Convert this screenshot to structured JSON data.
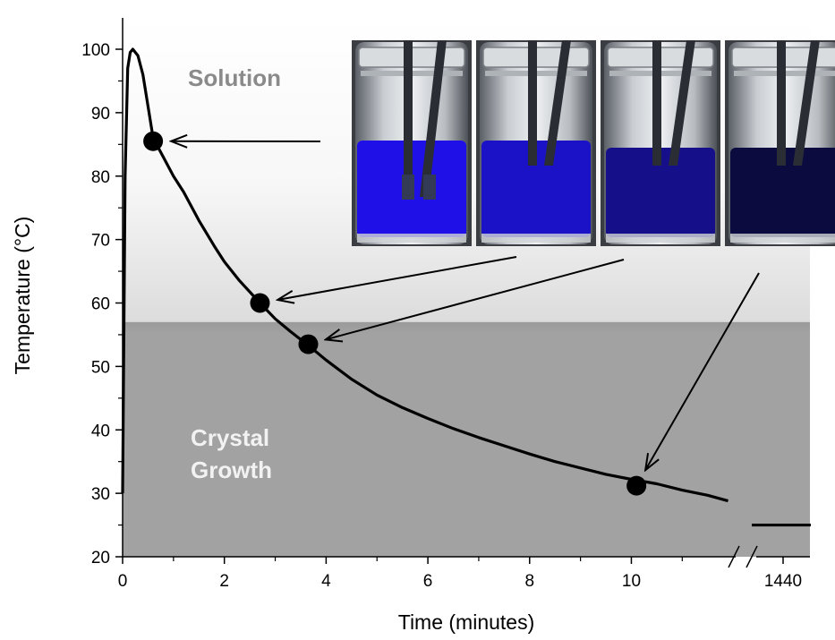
{
  "chart_data": {
    "type": "line",
    "title": "",
    "xlabel": "Time (minutes)",
    "ylabel": "Temperature (°C)",
    "xlim": [
      0,
      12
    ],
    "ylim": [
      20,
      100
    ],
    "x_ticks": [
      "0",
      "2",
      "4",
      "6",
      "8",
      "10"
    ],
    "x_break_tick": "1440",
    "y_ticks": [
      "20",
      "30",
      "40",
      "50",
      "60",
      "70",
      "80",
      "90",
      "100"
    ],
    "grid": false,
    "legend": "none",
    "regions": [
      {
        "label": "Solution",
        "color": "#8a8a8a"
      },
      {
        "label": "Crystal\nGrowth",
        "color": "#f2f2f2"
      }
    ],
    "region_boundary_temp": 57,
    "series": [
      {
        "x": [
          0,
          0.05,
          0.1,
          0.15,
          0.2,
          0.3,
          0.4,
          0.5,
          0.6,
          0.8,
          1.0,
          1.2,
          1.5,
          1.8,
          2.0,
          2.3,
          2.7,
          3.0,
          3.3,
          3.7,
          4.0,
          4.5,
          5.0,
          5.5,
          6.0,
          6.5,
          7.0,
          7.5,
          8.0,
          8.5,
          9.0,
          9.5,
          10.0,
          10.5,
          11.0,
          11.5,
          11.9
        ],
        "y": [
          30,
          80,
          97,
          99.5,
          100,
          99,
          96,
          91,
          86,
          83,
          80,
          77.5,
          73,
          69,
          66.5,
          63.5,
          60,
          57.5,
          55.5,
          53,
          51,
          48,
          45.5,
          43.5,
          41.8,
          40.2,
          38.8,
          37.5,
          36.2,
          35,
          34,
          33,
          32.2,
          31.5,
          30.5,
          29.7,
          28.8
        ],
        "color": "#000000"
      }
    ],
    "after_break_segment": {
      "x_label": "1440",
      "y": 25
    },
    "highlight_points": [
      {
        "x": 0.6,
        "y": 85.5
      },
      {
        "x": 2.7,
        "y": 60
      },
      {
        "x": 3.65,
        "y": 53.5
      },
      {
        "x": 10.1,
        "y": 31.2
      }
    ],
    "inset": {
      "description_colors": [
        "#1f10e8",
        "#1b12c8",
        "#160f8a",
        "#0c0b40"
      ],
      "panel_count": 4
    }
  }
}
